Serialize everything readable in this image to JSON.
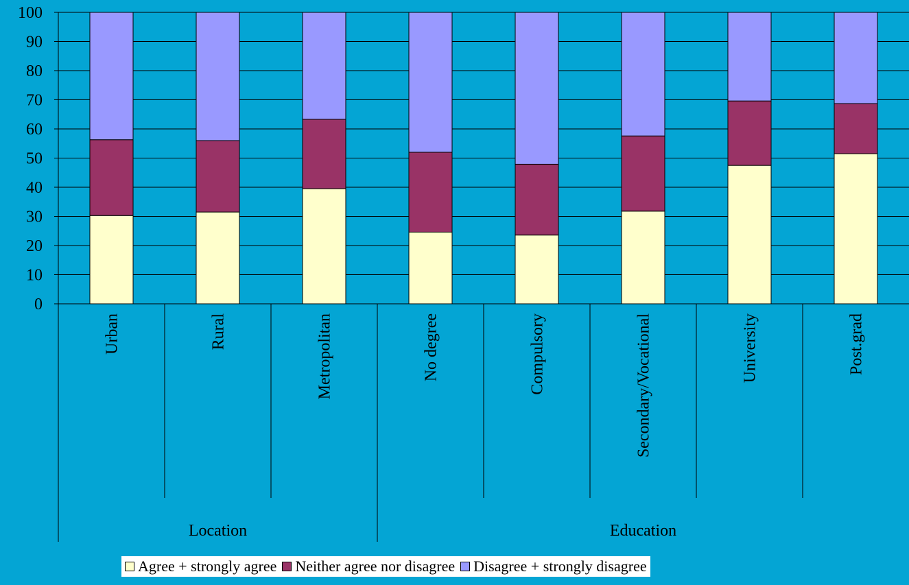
{
  "chart_data": {
    "type": "bar",
    "stacked": true,
    "categories": [
      "Urban",
      "Rural",
      "Metropolitan",
      "No degree",
      "Compulsory",
      "Secondary/Vocational",
      "University",
      "Post.grad"
    ],
    "groups": [
      {
        "label": "Location",
        "categories": [
          "Urban",
          "Rural",
          "Metropolitan"
        ]
      },
      {
        "label": "Education",
        "categories": [
          "No degree",
          "Compulsory",
          "Secondary/Vocational",
          "University",
          "Post.grad"
        ]
      }
    ],
    "series": [
      {
        "name": "Agree + strongly agree",
        "color": "#FFFFCC",
        "values": [
          30.3,
          31.5,
          39.5,
          24.6,
          23.6,
          31.8,
          47.5,
          51.5
        ]
      },
      {
        "name": "Neither agree nor disagree",
        "color": "#993366",
        "values": [
          26.0,
          24.5,
          23.8,
          27.4,
          24.3,
          25.8,
          22.1,
          17.2
        ]
      },
      {
        "name": "Disagree + strongly disagree",
        "color": "#9999FF",
        "values": [
          43.7,
          44.0,
          36.7,
          48.0,
          52.1,
          42.4,
          30.4,
          31.3
        ]
      }
    ],
    "ylim": [
      0,
      100
    ],
    "yticks": [
      0,
      10,
      20,
      30,
      40,
      50,
      60,
      70,
      80,
      90,
      100
    ],
    "grid": true,
    "legend_position": "bottom",
    "title": "",
    "xlabel": "",
    "ylabel": "",
    "colors": {
      "background": "#04A5D4",
      "axis": "#000000",
      "legend_background": "#FFFFFF"
    }
  }
}
